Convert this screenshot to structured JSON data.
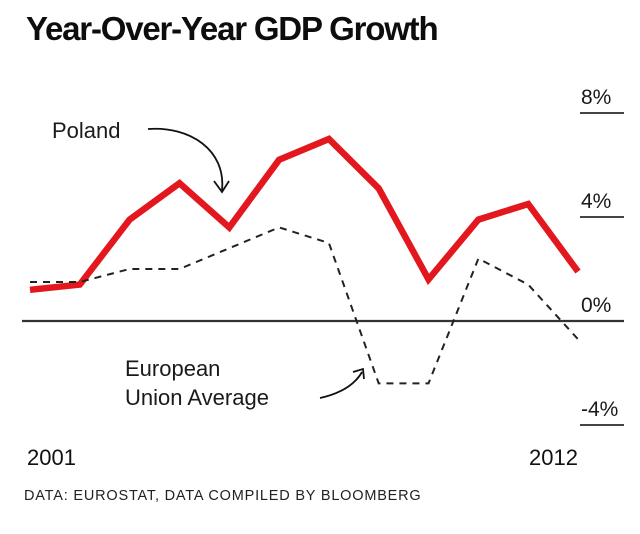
{
  "chart_data": {
    "type": "line",
    "title": "Year-Over-Year GDP Growth",
    "xlabel": "",
    "ylabel": "",
    "x": [
      2001,
      2002,
      2003,
      2004,
      2005,
      2006,
      2007,
      2008,
      2009,
      2010,
      2011,
      2012
    ],
    "x_tick_labels": [
      "2001",
      "2012"
    ],
    "y_ticks": [
      8,
      4,
      0,
      -4
    ],
    "y_tick_labels": [
      "8%",
      "4%",
      "0%",
      "-4%"
    ],
    "ylim": [
      -4,
      8
    ],
    "grid": true,
    "series": [
      {
        "name": "Poland",
        "color": "#e3171e",
        "style": "solid",
        "values": [
          1.2,
          1.4,
          3.9,
          5.3,
          3.6,
          6.2,
          7.0,
          5.1,
          1.6,
          3.9,
          4.5,
          1.9
        ]
      },
      {
        "name": "European Union Average",
        "color": "#222222",
        "style": "dashed",
        "values": [
          1.5,
          1.5,
          2.0,
          2.0,
          2.8,
          3.6,
          3.0,
          -2.4,
          -2.4,
          2.4,
          1.4,
          -0.7
        ]
      }
    ],
    "annotations": [
      {
        "text": "Poland",
        "target_series": "Poland"
      },
      {
        "text": "European Union Average",
        "lines": [
          "European",
          "Union Average"
        ],
        "target_series": "European Union Average"
      }
    ],
    "source": "DATA: EUROSTAT, DATA COMPILED BY BLOOMBERG"
  }
}
